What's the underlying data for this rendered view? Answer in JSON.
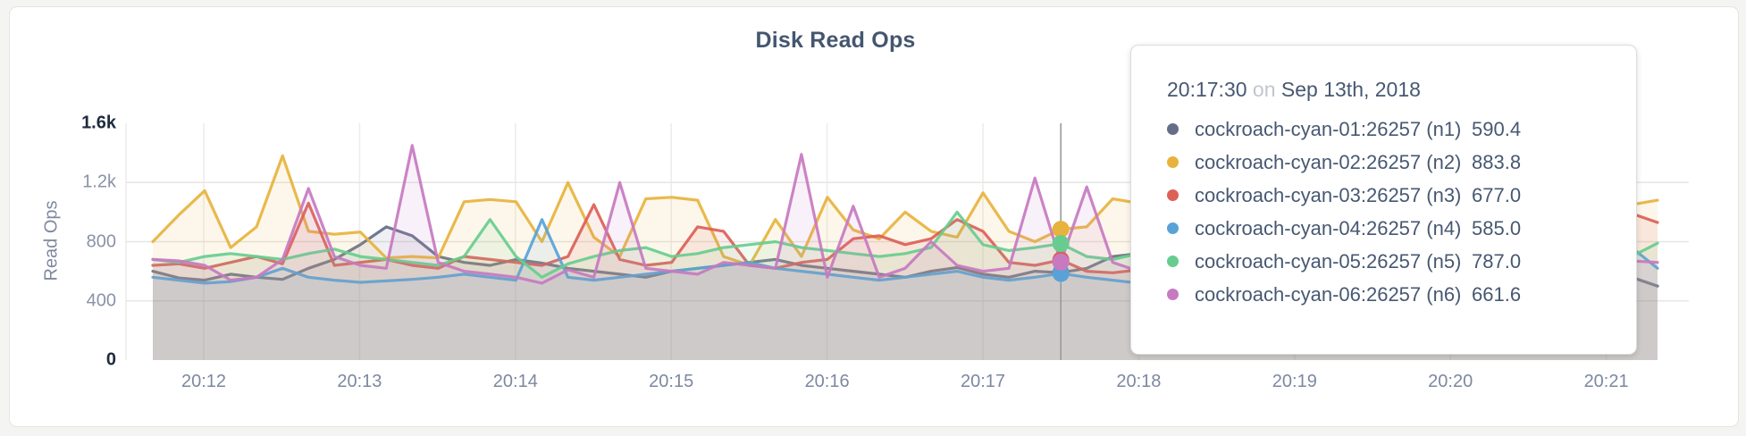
{
  "chart": {
    "title": "Disk Read Ops",
    "ylabel": "Read Ops"
  },
  "tooltip": {
    "time": "20:17:30",
    "on_word": "on",
    "date": "Sep 13th, 2018",
    "rows": [
      {
        "label": "cockroach-cyan-01:26257 (n1)",
        "value": "590.4",
        "color": "#646e89"
      },
      {
        "label": "cockroach-cyan-02:26257 (n2)",
        "value": "883.8",
        "color": "#e7b33d"
      },
      {
        "label": "cockroach-cyan-03:26257 (n3)",
        "value": "677.0",
        "color": "#dc6056"
      },
      {
        "label": "cockroach-cyan-04:26257 (n4)",
        "value": "585.0",
        "color": "#59a2d7"
      },
      {
        "label": "cockroach-cyan-05:26257 (n5)",
        "value": "787.0",
        "color": "#67cd8e"
      },
      {
        "label": "cockroach-cyan-06:26257 (n6)",
        "value": "661.6",
        "color": "#c77ac0"
      }
    ]
  },
  "chart_data": {
    "type": "line",
    "title": "Disk Read Ops",
    "ylabel": "Read Ops",
    "xlabel": "",
    "ylim": [
      0,
      1600
    ],
    "grid": true,
    "legend_position": "tooltip",
    "x_start": "20:11:40",
    "x_end": "20:21:20",
    "x_step_seconds": 10,
    "x_ticks": [
      "20:12",
      "20:13",
      "20:14",
      "20:15",
      "20:16",
      "20:17",
      "20:18",
      "20:19",
      "20:20",
      "20:21"
    ],
    "y_ticks": [
      "0",
      "400",
      "800",
      "1.2k",
      "1.6k"
    ],
    "y_tick_values": [
      0,
      400,
      800,
      1200,
      1600
    ],
    "hover_time": "20:17:30",
    "hover_index": 35,
    "series": [
      {
        "name": "cockroach-cyan-01:26257 (n1)",
        "color": "#646e89",
        "values": [
          600,
          555,
          540,
          580,
          560,
          545,
          620,
          680,
          780,
          900,
          840,
          700,
          660,
          640,
          680,
          655,
          620,
          600,
          580,
          560,
          600,
          620,
          640,
          660,
          680,
          640,
          620,
          600,
          580,
          560,
          600,
          625,
          580,
          560,
          600,
          590.4,
          620,
          700,
          720,
          650,
          630,
          660,
          640,
          620,
          650,
          630,
          600,
          620,
          640,
          630,
          650,
          620,
          600,
          630,
          650,
          620,
          600,
          560,
          500
        ]
      },
      {
        "name": "cockroach-cyan-02:26257 (n2)",
        "color": "#e7b33d",
        "values": [
          800,
          980,
          1145,
          760,
          900,
          1380,
          870,
          850,
          865,
          690,
          700,
          690,
          1070,
          1085,
          1070,
          800,
          1200,
          830,
          700,
          1090,
          1100,
          1080,
          700,
          640,
          950,
          700,
          1100,
          880,
          820,
          1000,
          870,
          830,
          1130,
          870,
          800,
          883.8,
          900,
          1090,
          1060,
          900,
          850,
          950,
          1000,
          880,
          820,
          900,
          950,
          870,
          830,
          900,
          980,
          850,
          800,
          900,
          950,
          1050,
          1080,
          1050,
          1080
        ]
      },
      {
        "name": "cockroach-cyan-03:26257 (n3)",
        "color": "#dc6056",
        "values": [
          640,
          650,
          620,
          660,
          700,
          650,
          1060,
          640,
          660,
          680,
          640,
          620,
          700,
          680,
          660,
          640,
          700,
          1050,
          680,
          640,
          660,
          900,
          870,
          640,
          620,
          660,
          680,
          820,
          840,
          780,
          820,
          950,
          870,
          660,
          640,
          677,
          600,
          590,
          610,
          650,
          680,
          640,
          620,
          660,
          640,
          680,
          650,
          620,
          640,
          660,
          630,
          650,
          640,
          620,
          660,
          680,
          640,
          990,
          930
        ]
      },
      {
        "name": "cockroach-cyan-04:26257 (n4)",
        "color": "#59a2d7",
        "values": [
          560,
          540,
          520,
          530,
          560,
          620,
          560,
          540,
          525,
          535,
          545,
          560,
          580,
          560,
          540,
          950,
          560,
          540,
          560,
          580,
          600,
          620,
          640,
          660,
          620,
          600,
          580,
          560,
          540,
          560,
          580,
          600,
          560,
          540,
          560,
          585,
          560,
          540,
          520,
          560,
          580,
          560,
          540,
          560,
          580,
          560,
          540,
          560,
          580,
          560,
          540,
          560,
          580,
          600,
          560,
          540,
          900,
          760,
          620
        ]
      },
      {
        "name": "cockroach-cyan-05:26257 (n5)",
        "color": "#67cd8e",
        "values": [
          680,
          660,
          700,
          720,
          700,
          680,
          720,
          750,
          700,
          680,
          660,
          640,
          700,
          950,
          700,
          560,
          650,
          700,
          740,
          760,
          700,
          720,
          760,
          780,
          800,
          760,
          740,
          720,
          700,
          720,
          760,
          1000,
          780,
          740,
          760,
          787,
          700,
          680,
          720,
          700,
          720,
          740,
          700,
          680,
          700,
          720,
          740,
          700,
          680,
          700,
          720,
          700,
          680,
          700,
          720,
          680,
          660,
          700,
          790
        ]
      },
      {
        "name": "cockroach-cyan-06:26257 (n6)",
        "color": "#c77ac0",
        "values": [
          680,
          670,
          640,
          540,
          560,
          680,
          1160,
          700,
          640,
          620,
          1450,
          660,
          600,
          580,
          560,
          520,
          610,
          560,
          1200,
          620,
          600,
          580,
          660,
          640,
          620,
          1390,
          560,
          1040,
          560,
          620,
          800,
          640,
          600,
          620,
          1230,
          661.6,
          1170,
          660,
          600,
          620,
          650,
          600,
          580,
          640,
          700,
          620,
          600,
          650,
          620,
          600,
          640,
          620,
          600,
          650,
          700,
          660,
          640,
          670,
          660
        ]
      }
    ]
  }
}
